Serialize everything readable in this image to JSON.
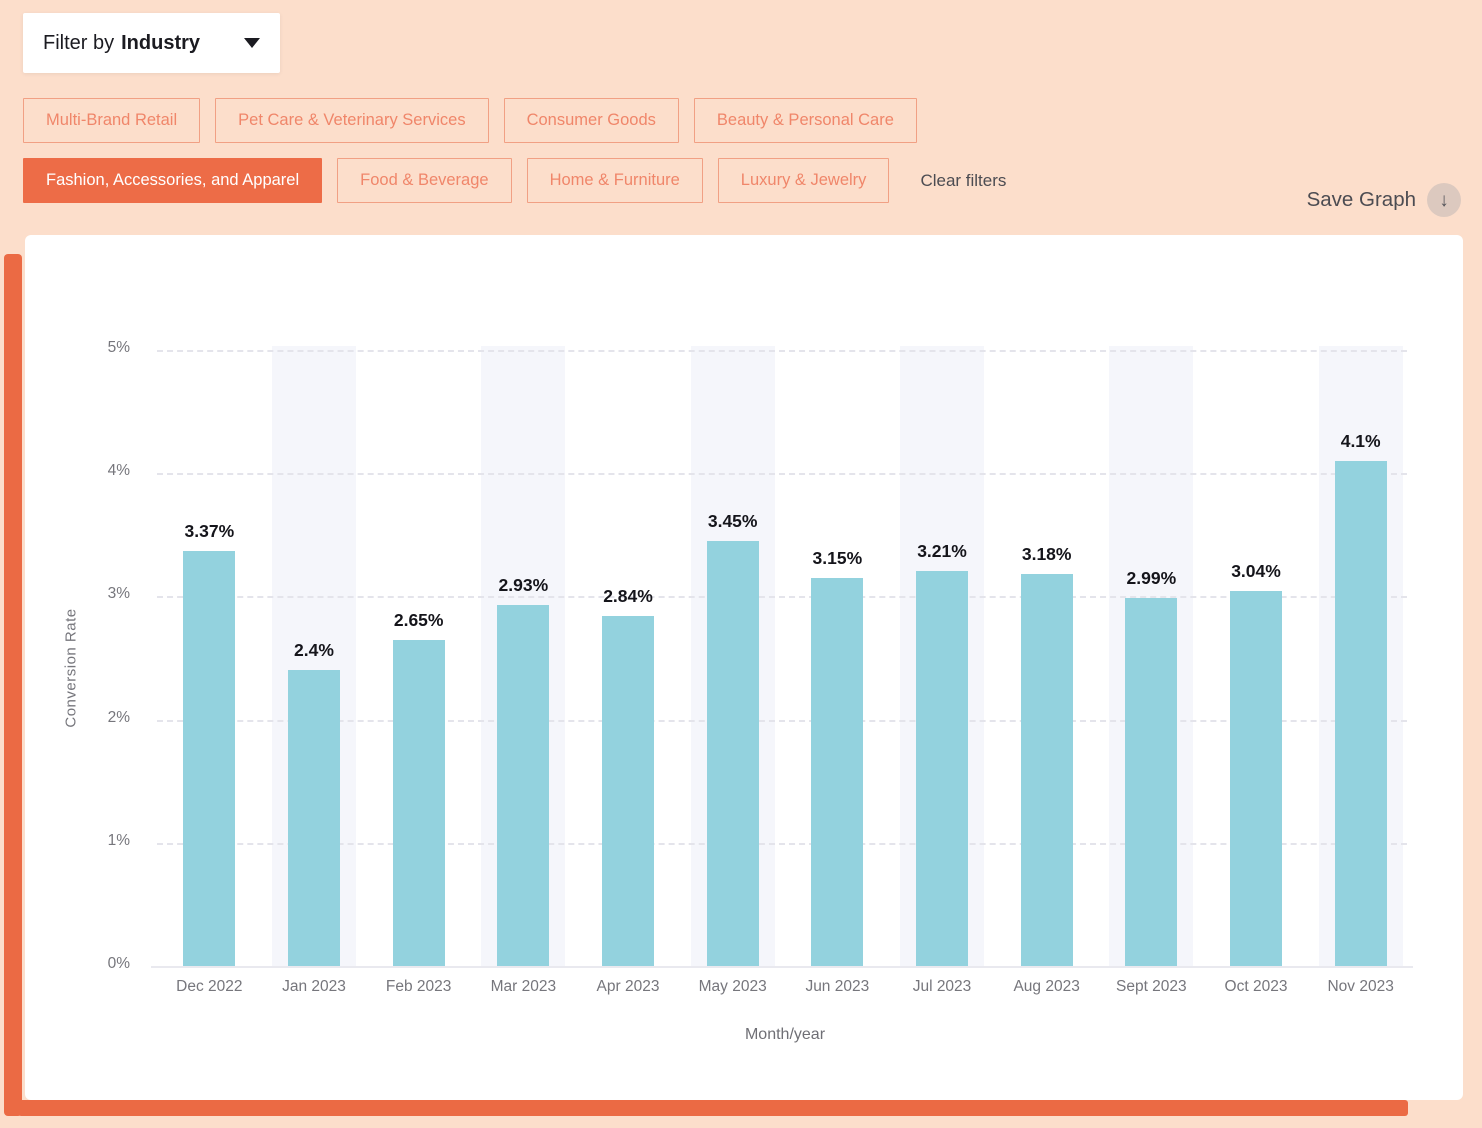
{
  "filter": {
    "prefix": "Filter by",
    "value": "Industry"
  },
  "chips": {
    "row1": [
      {
        "label": "Multi-Brand Retail",
        "selected": false
      },
      {
        "label": "Pet Care & Veterinary Services",
        "selected": false
      },
      {
        "label": "Consumer Goods",
        "selected": false
      },
      {
        "label": "Beauty & Personal Care",
        "selected": false
      }
    ],
    "row2": [
      {
        "label": "Fashion, Accessories, and Apparel",
        "selected": true
      },
      {
        "label": "Food & Beverage",
        "selected": false
      },
      {
        "label": "Home & Furniture",
        "selected": false
      },
      {
        "label": "Luxury & Jewelry",
        "selected": false
      }
    ],
    "clear_label": "Clear filters"
  },
  "toolbar": {
    "save_label": "Save Graph",
    "save_icon": "download-arrow"
  },
  "colors": {
    "page_background": "#fcdecb",
    "brush_orange": "#eb6a44",
    "selected_chip": "#ed6c47",
    "chip_text": "#f0866a",
    "chip_border": "#f1a084",
    "bar_fill": "#93d2de",
    "column_band": "#f5f6fb",
    "axis_text": "#76767c",
    "value_label_text": "#15151b"
  },
  "chart_data": {
    "type": "bar",
    "categories": [
      "Dec 2022",
      "Jan 2023",
      "Feb 2023",
      "Mar 2023",
      "Apr 2023",
      "May 2023",
      "Jun 2023",
      "Jul 2023",
      "Aug 2023",
      "Sept 2023",
      "Oct 2023",
      "Nov 2023"
    ],
    "values": [
      3.37,
      2.4,
      2.65,
      2.93,
      2.84,
      3.45,
      3.15,
      3.21,
      3.18,
      2.99,
      3.04,
      4.1
    ],
    "value_labels": [
      "3.37%",
      "2.4%",
      "2.65%",
      "2.93%",
      "2.84%",
      "3.45%",
      "3.15%",
      "3.21%",
      "3.18%",
      "2.99%",
      "3.04%",
      "4.1%"
    ],
    "title": "",
    "xlabel": "Month/year",
    "ylabel": "Conversion Rate",
    "ylim": [
      0,
      5
    ],
    "yticks": [
      "0%",
      "1%",
      "2%",
      "3%",
      "4%",
      "5%"
    ],
    "grid": "horizontal dashed",
    "highlighted_columns": [
      1,
      3,
      5,
      7,
      9,
      11
    ],
    "legend": "none"
  }
}
